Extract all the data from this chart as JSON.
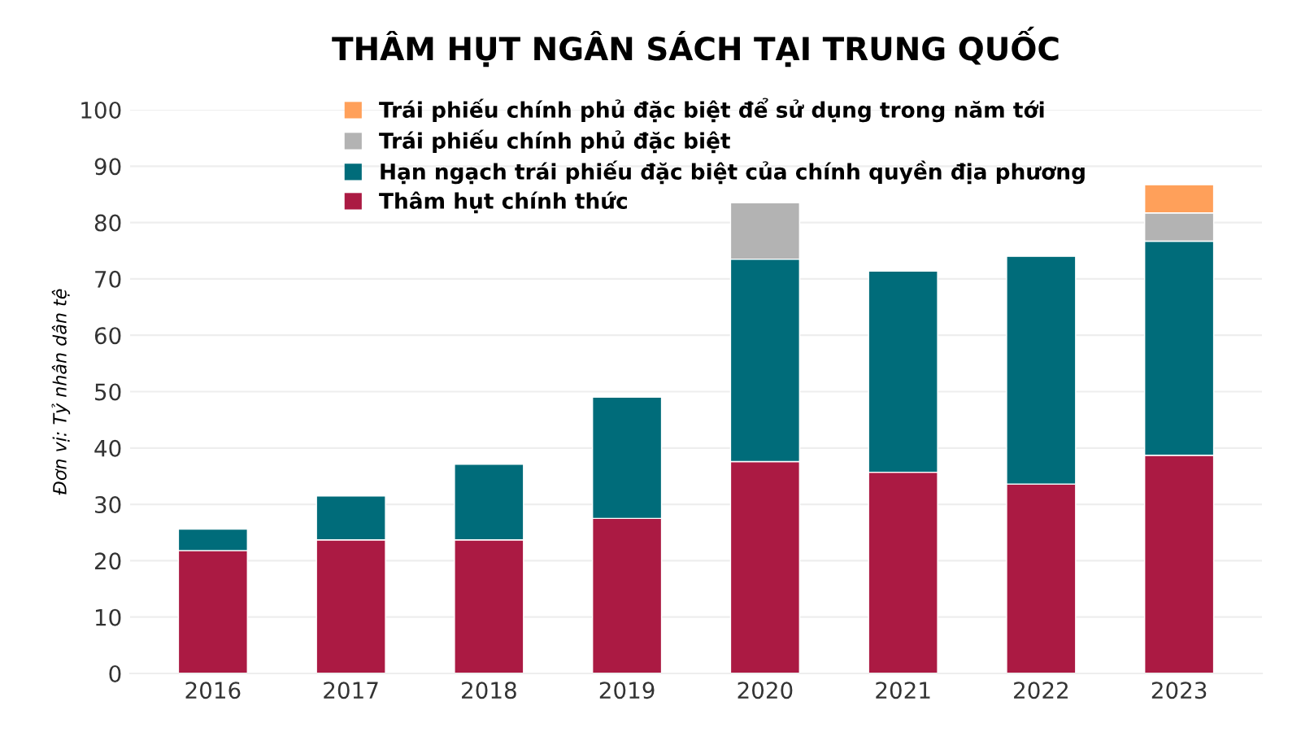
{
  "chart_data": {
    "type": "bar",
    "stacked": true,
    "title": "THÂM HỤT NGÂN SÁCH TẠI TRUNG QUỐC",
    "ylabel": "Đơn vị: Tỷ nhân dân tệ",
    "categories": [
      "2016",
      "2017",
      "2018",
      "2019",
      "2020",
      "2021",
      "2022",
      "2023"
    ],
    "series": [
      {
        "name": "Thâm hụt chính thức",
        "color": "#ab1a43",
        "values": [
          21.8,
          23.7,
          23.7,
          27.5,
          37.6,
          35.7,
          33.6,
          38.7
        ]
      },
      {
        "name": "Hạn ngạch trái phiếu đặc biệt của chính quyền địa phương",
        "color": "#006c7a",
        "values": [
          3.8,
          7.8,
          13.4,
          21.5,
          35.9,
          35.7,
          40.4,
          38.0
        ]
      },
      {
        "name": "Trái phiếu chính phủ đặc biệt",
        "color": "#b3b3b3",
        "values": [
          null,
          null,
          null,
          null,
          10.0,
          null,
          null,
          5.0
        ]
      },
      {
        "name": "Trái phiếu chính phủ đặc biệt để sử dụng trong năm tới",
        "color": "#ffa05a",
        "values": [
          null,
          null,
          null,
          null,
          null,
          null,
          null,
          5.0
        ]
      }
    ],
    "ylim": [
      0,
      100
    ],
    "yticks": [
      0,
      10,
      20,
      30,
      40,
      50,
      60,
      70,
      80,
      90,
      100
    ],
    "grid": "y",
    "legend": "top"
  }
}
